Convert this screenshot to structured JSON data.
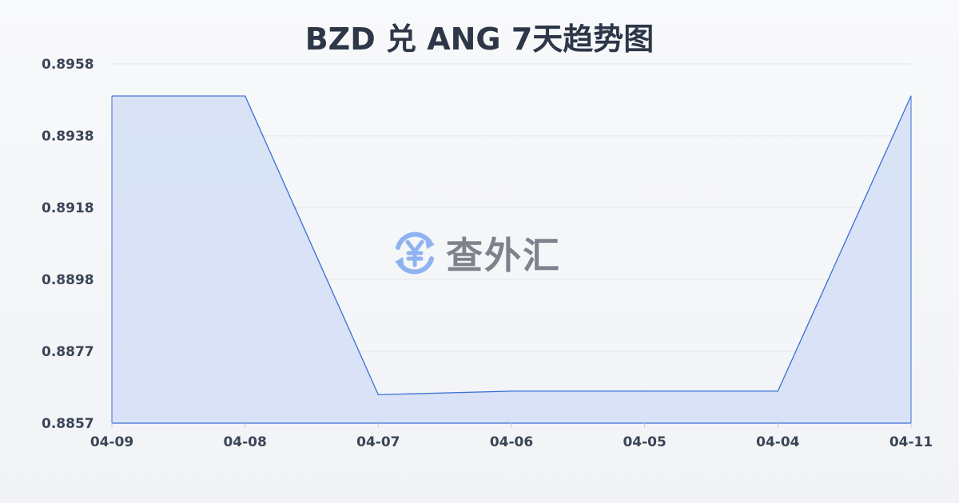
{
  "chart_data": {
    "type": "area",
    "title": "BZD 兑 ANG 7天趋势图",
    "categories": [
      "04-09",
      "04-08",
      "04-07",
      "04-06",
      "04-05",
      "04-04",
      "04-11"
    ],
    "values": [
      0.8949,
      0.8949,
      0.8865,
      0.8866,
      0.8866,
      0.8866,
      0.8949
    ],
    "yticks": [
      "0.8958",
      "0.8938",
      "0.8918",
      "0.8898",
      "0.8877",
      "0.8857"
    ],
    "ylim": [
      0.8857,
      0.8958
    ],
    "grid": true,
    "line_color": "#3b6fd4",
    "fill_color": "#d6e0f5"
  },
  "watermark": {
    "text": "查外汇",
    "icon": "yen-exchange-icon",
    "icon_color": "#8fb3f0"
  }
}
